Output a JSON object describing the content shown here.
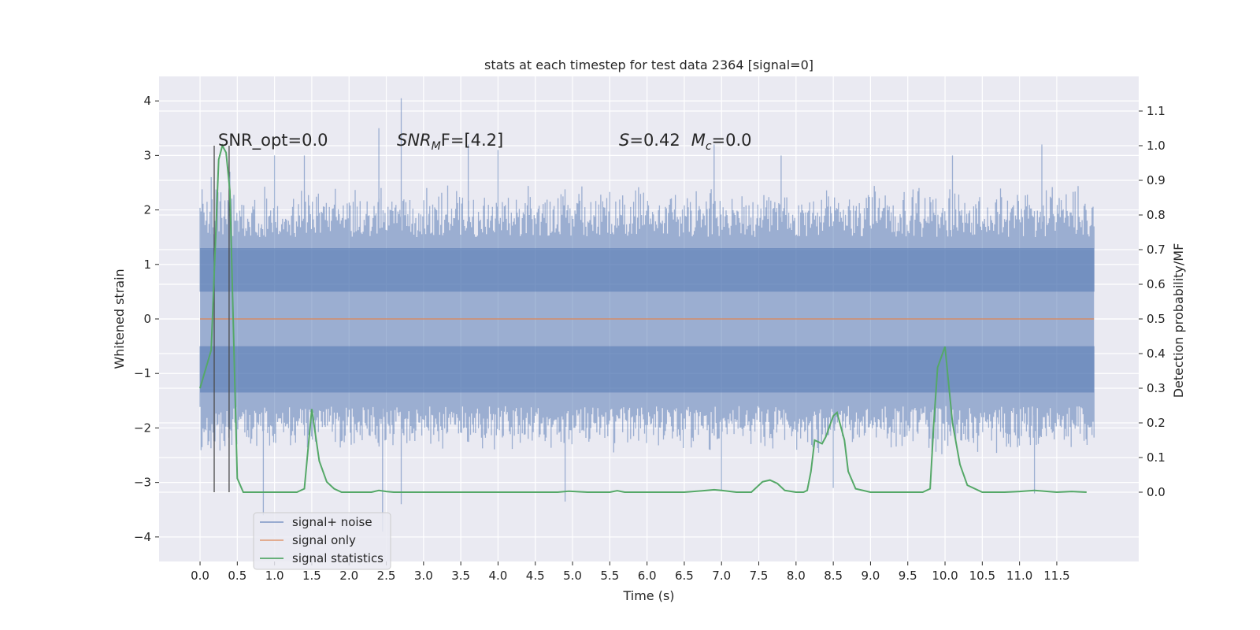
{
  "chart_data": {
    "type": "line",
    "title": "stats at each timestep for test data 2364 [signal=0]",
    "xlabel": "Time (s)",
    "ylabel": "Whitened strain",
    "ylabel_right": "Detection probability/MF",
    "xlim": [
      -0.55,
      12.6
    ],
    "ylim": [
      -4.45,
      4.45
    ],
    "ylim_right": [
      -0.2,
      1.2
    ],
    "x_ticks": [
      "0.0",
      "0.5",
      "1.0",
      "1.5",
      "2.0",
      "2.5",
      "3.0",
      "3.5",
      "4.0",
      "4.5",
      "5.0",
      "5.5",
      "6.0",
      "6.5",
      "7.0",
      "7.5",
      "8.0",
      "8.5",
      "9.0",
      "9.5",
      "10.0",
      "10.5",
      "11.0",
      "11.5"
    ],
    "y_ticks": [
      "4",
      "3",
      "2",
      "1",
      "0",
      "−1",
      "−2",
      "−3",
      "−4"
    ],
    "y_ticks_right": [
      "1.1",
      "1.0",
      "0.9",
      "0.8",
      "0.7",
      "0.6",
      "0.5",
      "0.4",
      "0.3",
      "0.2",
      "0.1",
      "0.0"
    ],
    "grid": true,
    "annotations": {
      "snr_opt": "SNR_opt=0.0",
      "snr_mf_prefix": "SNR",
      "snr_mf_sub": "M",
      "snr_mf_suffix": "F=[4.2]",
      "s_var": "S",
      "s_val": "=0.42",
      "mc_var": "M",
      "mc_sub": "c",
      "mc_val": "=0.0"
    },
    "vertical_lines_x": [
      0.19,
      0.39
    ],
    "noise": {
      "x_range": [
        0.0,
        12.0
      ],
      "envelope_core": [
        -1.35,
        1.3
      ],
      "typical_extent": [
        -2.5,
        2.5
      ],
      "peaks": [
        [
          0.15,
          2.6
        ],
        [
          0.4,
          2.7
        ],
        [
          1.0,
          3.0
        ],
        [
          1.4,
          3.0
        ],
        [
          2.4,
          3.5
        ],
        [
          2.7,
          4.05
        ],
        [
          3.6,
          3.2
        ],
        [
          4.0,
          3.1
        ],
        [
          6.9,
          3.2
        ],
        [
          7.8,
          3.0
        ],
        [
          10.1,
          3.0
        ],
        [
          11.3,
          3.2
        ],
        [
          0.85,
          -3.6
        ],
        [
          2.45,
          -3.9
        ],
        [
          2.7,
          -3.4
        ],
        [
          4.9,
          -3.35
        ],
        [
          7.0,
          -3.15
        ],
        [
          8.5,
          -3.1
        ],
        [
          11.2,
          -3.2
        ]
      ]
    },
    "signal_only": {
      "value": 0.0
    },
    "series": [
      {
        "name": "signal+ noise",
        "color": "#4c72b0"
      },
      {
        "name": "signal only",
        "color": "#dd8452"
      },
      {
        "name": "signal statistics",
        "color": "#55a868",
        "x": [
          0.0,
          0.15,
          0.25,
          0.3,
          0.35,
          0.4,
          0.5,
          0.58,
          0.65,
          0.8,
          0.95,
          1.1,
          1.3,
          1.4,
          1.5,
          1.6,
          1.7,
          1.8,
          1.9,
          2.1,
          2.3,
          2.4,
          2.5,
          2.6,
          2.8,
          3.0,
          3.5,
          4.0,
          4.5,
          4.8,
          4.95,
          5.2,
          5.5,
          5.6,
          5.7,
          6.0,
          6.5,
          6.8,
          6.9,
          7.0,
          7.2,
          7.4,
          7.55,
          7.65,
          7.75,
          7.85,
          8.0,
          8.1,
          8.15,
          8.2,
          8.25,
          8.35,
          8.4,
          8.5,
          8.55,
          8.65,
          8.7,
          8.8,
          9.0,
          9.2,
          9.5,
          9.7,
          9.8,
          9.85,
          9.9,
          9.95,
          10.0,
          10.1,
          10.2,
          10.3,
          10.5,
          10.8,
          11.0,
          11.2,
          11.5,
          11.7,
          11.9
        ],
        "y": [
          0.3,
          0.41,
          0.96,
          1.0,
          0.98,
          0.87,
          0.04,
          0.0,
          0.0,
          0.0,
          0.0,
          0.0,
          0.0,
          0.01,
          0.24,
          0.09,
          0.03,
          0.01,
          0.0,
          0.0,
          0.0,
          0.005,
          0.002,
          0.0,
          0.0,
          0.0,
          0.0,
          0.0,
          0.0,
          0.0,
          0.003,
          0.0,
          0.0,
          0.004,
          0.0,
          0.0,
          0.0,
          0.005,
          0.007,
          0.005,
          0.0,
          0.0,
          0.03,
          0.035,
          0.025,
          0.005,
          0.0,
          0.0,
          0.005,
          0.06,
          0.15,
          0.14,
          0.16,
          0.22,
          0.23,
          0.15,
          0.06,
          0.01,
          0.0,
          0.0,
          0.0,
          0.0,
          0.01,
          0.2,
          0.36,
          0.39,
          0.42,
          0.2,
          0.08,
          0.02,
          0.0,
          0.0,
          0.002,
          0.005,
          0.0,
          0.002,
          0.0
        ]
      }
    ]
  }
}
